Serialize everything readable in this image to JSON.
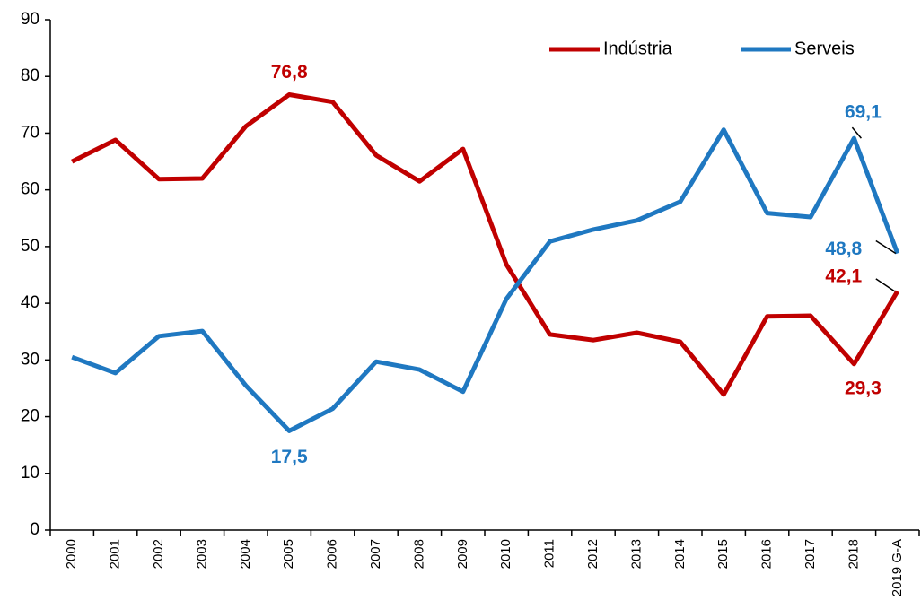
{
  "chart_data": {
    "type": "line",
    "categories": [
      "2000",
      "2001",
      "2002",
      "2003",
      "2004",
      "2005",
      "2006",
      "2007",
      "2008",
      "2009",
      "2010",
      "2011",
      "2012",
      "2013",
      "2014",
      "2015",
      "2016",
      "2017",
      "2018",
      "2019 G-A"
    ],
    "series": [
      {
        "name": "Indústria",
        "color": "#c00000",
        "values": [
          65.0,
          68.8,
          61.9,
          62.0,
          71.2,
          76.8,
          75.5,
          66.1,
          61.5,
          67.2,
          46.8,
          34.5,
          33.5,
          34.8,
          33.2,
          23.9,
          37.7,
          37.8,
          29.3,
          42.1
        ],
        "value_labels": [
          null,
          null,
          null,
          null,
          null,
          "76,8",
          null,
          null,
          null,
          null,
          null,
          null,
          null,
          null,
          null,
          null,
          null,
          null,
          "29,3",
          "42,1"
        ]
      },
      {
        "name": "Serveis",
        "color": "#1f78c1",
        "values": [
          30.5,
          27.7,
          34.2,
          35.1,
          25.5,
          17.5,
          21.4,
          29.7,
          28.3,
          24.4,
          40.8,
          50.9,
          53.0,
          54.6,
          57.9,
          70.6,
          55.9,
          55.2,
          69.1,
          48.8
        ],
        "value_labels": [
          null,
          null,
          null,
          null,
          null,
          "17,5",
          null,
          null,
          null,
          null,
          null,
          null,
          null,
          null,
          null,
          null,
          null,
          null,
          "69,1",
          "48,8"
        ]
      }
    ],
    "ylim": [
      0,
      90
    ],
    "yticks": [
      0,
      10,
      20,
      30,
      40,
      50,
      60,
      70,
      80,
      90
    ],
    "legend": "top-right",
    "grid": false
  }
}
